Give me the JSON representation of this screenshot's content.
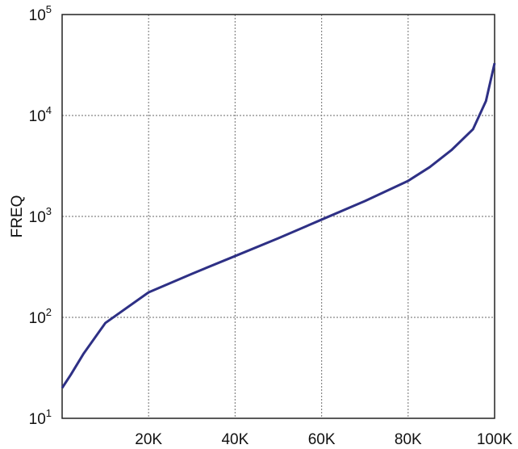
{
  "chart_data": {
    "type": "line",
    "y_label": "FREQ",
    "x": [
      0,
      2000,
      5000,
      10000,
      20000,
      30000,
      40000,
      50000,
      60000,
      70000,
      80000,
      85000,
      90000,
      95000,
      98000,
      100000
    ],
    "series": [
      {
        "name": "FREQ",
        "color": "#2e3085",
        "values": [
          20,
          27,
          44,
          88,
          177,
          270,
          405,
          608,
          930,
          1420,
          2250,
          3080,
          4530,
          7300,
          13900,
          33000
        ]
      }
    ],
    "xlim": [
      0,
      100000
    ],
    "xticks": [
      {
        "value": 20000,
        "label": "20K"
      },
      {
        "value": 40000,
        "label": "40K"
      },
      {
        "value": 60000,
        "label": "60K"
      },
      {
        "value": 80000,
        "label": "80K"
      },
      {
        "value": 100000,
        "label": "100K"
      }
    ],
    "ylim": [
      10,
      100000
    ],
    "log_y": true,
    "yticks": [
      {
        "value": 10,
        "label": "10",
        "exponent": "1"
      },
      {
        "value": 100,
        "label": "10",
        "exponent": "2"
      },
      {
        "value": 1000,
        "label": "10",
        "exponent": "3"
      },
      {
        "value": 10000,
        "label": "10",
        "exponent": "4"
      },
      {
        "value": 100000,
        "label": "10",
        "exponent": "5"
      }
    ],
    "grid": true
  }
}
